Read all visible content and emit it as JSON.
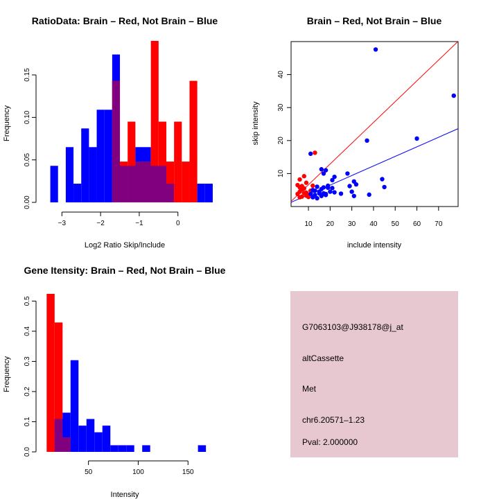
{
  "colors": {
    "red": "#ff0000",
    "blue": "#0000ff",
    "overlap": "#800080",
    "panel_bg": "#e8c8d0",
    "pval": "#8b0000"
  },
  "chart_data": [
    {
      "type": "bar",
      "title": "RatioData: Brain – Red, Not Brain – Blue",
      "xlabel": "Log2 Ratio Skip/Include",
      "ylabel": "Frequency",
      "xlim": [
        -3.4,
        0.65
      ],
      "ylim": [
        0,
        0.19
      ],
      "xticks": [
        -3,
        -2,
        -1,
        0
      ],
      "xtick_labels": [
        "−3",
        "−2",
        "−1",
        "0"
      ],
      "yticks": [
        0,
        0.05,
        0.1,
        0.15
      ],
      "ytick_labels": [
        "0.00",
        "0.05",
        "0.10",
        "0.15"
      ],
      "bin_width": 0.2,
      "bin_start": -3.3,
      "series": [
        {
          "name": "Not Brain",
          "color": "blue",
          "values": [
            0.043,
            0,
            0.065,
            0.022,
            0.087,
            0.065,
            0.109,
            0.109,
            0.174,
            0.043,
            0.043,
            0.065,
            0.065,
            0.043,
            0.043,
            0.022,
            0,
            0,
            0,
            0.022,
            0.022
          ]
        },
        {
          "name": "Brain",
          "color": "red",
          "values": [
            0,
            0,
            0,
            0,
            0,
            0,
            0,
            0,
            0.143,
            0.048,
            0.095,
            0.048,
            0.048,
            0.19,
            0.095,
            0.048,
            0.095,
            0.048,
            0.143,
            0,
            0
          ]
        }
      ]
    },
    {
      "type": "scatter",
      "title": "Brain – Red, Not Brain – Blue",
      "xlabel": "include intensity",
      "ylabel": "skip intensity",
      "xlim": [
        2,
        79
      ],
      "ylim": [
        0,
        50
      ],
      "xticks": [
        10,
        20,
        30,
        40,
        50,
        60,
        70
      ],
      "yticks": [
        10,
        20,
        30,
        40
      ],
      "series": [
        {
          "name": "Brain",
          "color": "red",
          "points": [
            [
              5,
              6.5
            ],
            [
              6,
              8.2
            ],
            [
              7,
              6.2
            ],
            [
              8,
              9.2
            ],
            [
              6,
              4.5
            ],
            [
              5,
              3.8
            ],
            [
              9,
              4.2
            ],
            [
              7,
              3
            ],
            [
              8,
              5.5
            ],
            [
              6,
              2.8
            ],
            [
              10,
              3.5
            ],
            [
              9,
              7.2
            ],
            [
              11,
              4.8
            ],
            [
              12,
              6.3
            ],
            [
              8,
              4.1
            ],
            [
              13,
              16.3
            ],
            [
              7,
              5.2
            ],
            [
              10,
              2.9
            ],
            [
              6,
              5.8
            ],
            [
              9,
              3.3
            ]
          ]
        },
        {
          "name": "Not Brain",
          "color": "blue",
          "points": [
            [
              41,
              47.6
            ],
            [
              77,
              33.6
            ],
            [
              60,
              20.6
            ],
            [
              37,
              20
            ],
            [
              11,
              16
            ],
            [
              16,
              11.3
            ],
            [
              18,
              11
            ],
            [
              17,
              10
            ],
            [
              21,
              8
            ],
            [
              28,
              10
            ],
            [
              22,
              9
            ],
            [
              31,
              7.6
            ],
            [
              44,
              8.3
            ],
            [
              45,
              5.9
            ],
            [
              32,
              6.7
            ],
            [
              29,
              6.2
            ],
            [
              38,
              3.6
            ],
            [
              12,
              5
            ],
            [
              13,
              3.5
            ],
            [
              15,
              4.5
            ],
            [
              17,
              4
            ],
            [
              18,
              3.5
            ],
            [
              20,
              4.5
            ],
            [
              19,
              5.7
            ],
            [
              16,
              5.3
            ],
            [
              14,
              6
            ],
            [
              11,
              3.8
            ],
            [
              12,
              2.8
            ],
            [
              14,
              2.5
            ],
            [
              16,
              3.2
            ],
            [
              18,
              3.8
            ],
            [
              21,
              5.6
            ],
            [
              25,
              3.9
            ],
            [
              30,
              4.5
            ],
            [
              31,
              3.2
            ],
            [
              15,
              4
            ],
            [
              13,
              4.8
            ],
            [
              17,
              5.8
            ],
            [
              19,
              6.3
            ],
            [
              22,
              4.3
            ]
          ]
        }
      ],
      "lines": [
        {
          "name": "red regression",
          "color": "red",
          "intercept": 0.3,
          "slope": 0.63
        },
        {
          "name": "blue regression",
          "color": "blue",
          "intercept": 0.7,
          "slope": 0.29
        }
      ]
    },
    {
      "type": "bar",
      "title": "Gene Itensity: Brain – Red, Not Brain – Blue",
      "xlabel": "Intensity",
      "ylabel": "Frequency",
      "xlim": [
        5,
        170
      ],
      "ylim": [
        0,
        0.54
      ],
      "xticks": [
        50,
        100,
        150
      ],
      "yticks": [
        0,
        0.1,
        0.2,
        0.3,
        0.4,
        0.5
      ],
      "ytick_labels": [
        "0.0",
        "0.1",
        "0.2",
        "0.3",
        "0.4",
        "0.5"
      ],
      "bin_width": 8,
      "bin_start": 8,
      "series": [
        {
          "name": "Not Brain",
          "color": "blue",
          "values": [
            0,
            0.109,
            0.13,
            0.304,
            0.087,
            0.109,
            0.065,
            0.087,
            0.022,
            0.022,
            0.022,
            0,
            0.022,
            0,
            0,
            0,
            0,
            0,
            0,
            0.022
          ]
        },
        {
          "name": "Brain",
          "color": "red",
          "values": [
            0.524,
            0.429,
            0.048,
            0,
            0,
            0,
            0,
            0,
            0,
            0,
            0,
            0,
            0,
            0,
            0,
            0,
            0,
            0,
            0,
            0
          ]
        }
      ]
    }
  ],
  "info_panel": {
    "probe": "G7063103@J938178@j_at",
    "event_type": "altCassette",
    "gene": "Met",
    "location": "chr6.20571–1.23",
    "pval": "Pval: 2.000000"
  }
}
